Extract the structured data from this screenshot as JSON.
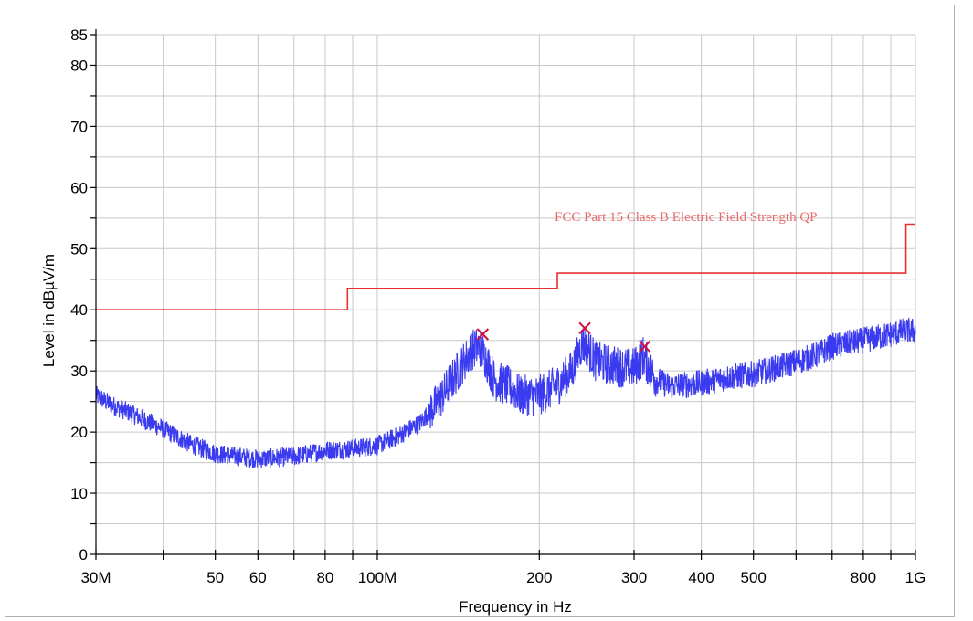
{
  "chart_data": {
    "type": "line",
    "xlabel": "Frequency in Hz",
    "ylabel": "Level in dBµV/m",
    "x_scale": "log",
    "xlim_hz": [
      30000000,
      1000000000
    ],
    "ylim": [
      0,
      85
    ],
    "grid": true,
    "x_ticks": [
      {
        "value": 30000000,
        "label": "30M"
      },
      {
        "value": 50000000,
        "label": "50"
      },
      {
        "value": 60000000,
        "label": "60"
      },
      {
        "value": 80000000,
        "label": "80"
      },
      {
        "value": 100000000,
        "label": "100M"
      },
      {
        "value": 200000000,
        "label": "200"
      },
      {
        "value": 300000000,
        "label": "300"
      },
      {
        "value": 400000000,
        "label": "400"
      },
      {
        "value": 500000000,
        "label": "500"
      },
      {
        "value": 800000000,
        "label": "800"
      },
      {
        "value": 1000000000,
        "label": "1G"
      }
    ],
    "x_minor_ticks": [
      40000000,
      70000000,
      90000000,
      600000000,
      700000000,
      900000000
    ],
    "y_ticks": [
      {
        "value": 0,
        "label": "0"
      },
      {
        "value": 10,
        "label": "10"
      },
      {
        "value": 20,
        "label": "20"
      },
      {
        "value": 30,
        "label": "30"
      },
      {
        "value": 40,
        "label": "40"
      },
      {
        "value": 50,
        "label": "50"
      },
      {
        "value": 60,
        "label": "60"
      },
      {
        "value": 70,
        "label": "70"
      },
      {
        "value": 80,
        "label": "80"
      },
      {
        "value": 85,
        "label": "85"
      }
    ],
    "y_minor_ticks": [
      5,
      15,
      25,
      35,
      45,
      55,
      65,
      75
    ],
    "series": [
      {
        "name": "FCC Part 15 Class B Electric Field Strength QP",
        "kind": "step",
        "color": "#e83030",
        "points_hz": [
          [
            30000000,
            40.0
          ],
          [
            88000000,
            40.0
          ],
          [
            88000000,
            43.5
          ],
          [
            216000000,
            43.5
          ],
          [
            216000000,
            46.0
          ],
          [
            960000000,
            46.0
          ],
          [
            960000000,
            54.0
          ],
          [
            1000000000,
            54.0
          ]
        ]
      },
      {
        "kind": "spectrum",
        "color": "#3a3af0",
        "envelope_hz": [
          [
            30000000,
            26.0
          ],
          [
            32000000,
            24.5
          ],
          [
            35000000,
            23.0
          ],
          [
            40000000,
            20.5
          ],
          [
            45000000,
            18.0
          ],
          [
            50000000,
            16.5
          ],
          [
            55000000,
            16.0
          ],
          [
            60000000,
            15.6
          ],
          [
            65000000,
            15.8
          ],
          [
            70000000,
            16.0
          ],
          [
            75000000,
            16.5
          ],
          [
            80000000,
            17.0
          ],
          [
            90000000,
            17.3
          ],
          [
            100000000,
            17.8
          ],
          [
            110000000,
            19.5
          ],
          [
            120000000,
            21.5
          ],
          [
            130000000,
            25.0
          ],
          [
            140000000,
            29.5
          ],
          [
            150000000,
            33.5
          ],
          [
            155000000,
            34.0
          ],
          [
            160000000,
            31.5
          ],
          [
            165000000,
            28.5
          ],
          [
            175000000,
            27.5
          ],
          [
            185000000,
            26.0
          ],
          [
            200000000,
            26.0
          ],
          [
            215000000,
            27.5
          ],
          [
            230000000,
            30.0
          ],
          [
            240000000,
            34.5
          ],
          [
            245000000,
            34.0
          ],
          [
            255000000,
            31.5
          ],
          [
            270000000,
            31.0
          ],
          [
            290000000,
            30.5
          ],
          [
            300000000,
            30.5
          ],
          [
            312000000,
            32.5
          ],
          [
            320000000,
            30.5
          ],
          [
            330000000,
            28.5
          ],
          [
            350000000,
            27.5
          ],
          [
            400000000,
            28.0
          ],
          [
            450000000,
            29.0
          ],
          [
            500000000,
            29.5
          ],
          [
            550000000,
            30.5
          ],
          [
            600000000,
            31.5
          ],
          [
            650000000,
            32.5
          ],
          [
            700000000,
            34.0
          ],
          [
            750000000,
            34.5
          ],
          [
            800000000,
            35.0
          ],
          [
            850000000,
            35.5
          ],
          [
            900000000,
            36.0
          ],
          [
            950000000,
            36.5
          ],
          [
            1000000000,
            36.5
          ]
        ]
      }
    ],
    "markers": [
      {
        "x_hz": 157000000,
        "y": 36.0,
        "symbol": "x",
        "color": "#d0103a"
      },
      {
        "x_hz": 243000000,
        "y": 37.0,
        "symbol": "x",
        "color": "#d0103a"
      },
      {
        "x_hz": 314000000,
        "y": 34.0,
        "symbol": "x",
        "color": "#d0103a"
      }
    ],
    "limit_label_color": "#e86a6a"
  }
}
